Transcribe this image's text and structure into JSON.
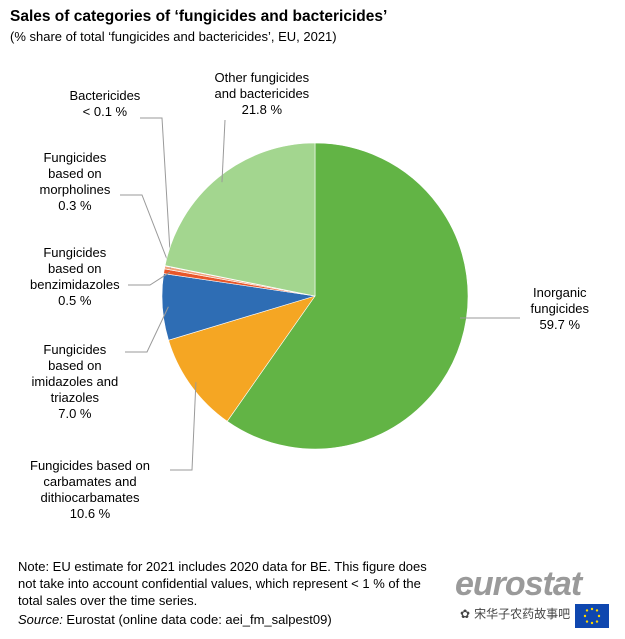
{
  "chart_data": {
    "type": "pie",
    "title": "Sales of categories of ‘fungicides and bactericides’",
    "subtitle": "(% share of total ‘fungicides and bactericides’, EU, 2021)",
    "slices": [
      {
        "label_lines": [
          "Inorganic",
          "fungicides"
        ],
        "value_text": "59.7 %",
        "value": 59.7,
        "color": "#62b445"
      },
      {
        "label_lines": [
          "Fungicides based on",
          "carbamates and",
          "dithiocarbamates"
        ],
        "value_text": "10.6 %",
        "value": 10.6,
        "color": "#f5a623"
      },
      {
        "label_lines": [
          "Fungicides",
          "based on",
          "imidazoles and",
          "triazoles"
        ],
        "value_text": "7.0 %",
        "value": 7.0,
        "color": "#2e6db4"
      },
      {
        "label_lines": [
          "Fungicides",
          "based on",
          "benzimidazoles"
        ],
        "value_text": "0.5 %",
        "value": 0.5,
        "color": "#e8572a"
      },
      {
        "label_lines": [
          "Fungicides",
          "based on",
          "morpholines"
        ],
        "value_text": "0.3 %",
        "value": 0.3,
        "color": "#f0a27a"
      },
      {
        "label_lines": [
          "Bactericides"
        ],
        "value_text": "< 0.1 %",
        "value": 0.05,
        "color": "#b40000"
      },
      {
        "label_lines": [
          "Other fungicides",
          "and bactericides"
        ],
        "value_text": "21.8 %",
        "value": 21.8,
        "color": "#a3d68f"
      }
    ]
  },
  "note": "Note: EU estimate for 2021 includes 2020 data for BE. This figure does not take into account confidential values, which represent < 1 % of the total sales over the time series.",
  "source_label": "Source:",
  "source_text": " Eurostat (online data code: aei_fm_salpest09)",
  "logo_text": "eurostat",
  "watermark_text": "宋华子农药故事吧"
}
